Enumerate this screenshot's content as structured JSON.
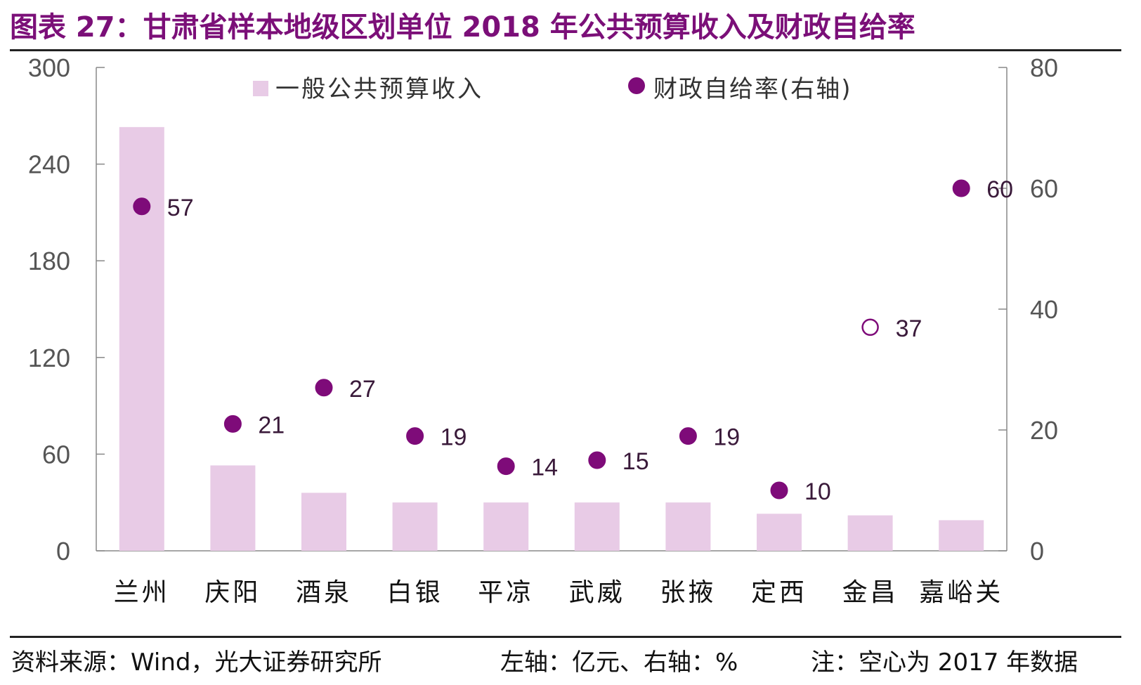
{
  "title": "图表 27：甘肃省样本地级区划单位 2018 年公共预算收入及财政自给率",
  "footer": {
    "source": "资料来源：Wind，光大证券研究所",
    "units": "左轴：亿元、右轴：%",
    "note": "注：空心为 2017 年数据"
  },
  "colors": {
    "bar": "#e8cbe6",
    "dot": "#7e0b79",
    "axis": "#888888",
    "tick_text": "#555555",
    "title": "#7b0f78"
  },
  "chart_data": {
    "type": "bar",
    "categories": [
      "兰州",
      "庆阳",
      "酒泉",
      "白银",
      "平凉",
      "武威",
      "张掖",
      "定西",
      "金昌",
      "嘉峪关"
    ],
    "series": [
      {
        "name": "一般公共预算收入",
        "axis": "left",
        "mark": "bar",
        "values": [
          263,
          53,
          36,
          30,
          30,
          30,
          30,
          23,
          22,
          19
        ]
      },
      {
        "name": "财政自给率(右轴)",
        "axis": "right",
        "mark": "dot",
        "values": [
          57,
          21,
          27,
          19,
          14,
          15,
          19,
          10,
          37,
          60
        ],
        "data_labels": [
          "57",
          "21",
          "27",
          "19",
          "14",
          "15",
          "19",
          "10",
          "37",
          "60"
        ],
        "hollow": [
          false,
          false,
          false,
          false,
          false,
          false,
          false,
          false,
          true,
          false
        ]
      }
    ],
    "y_left": {
      "lim": [
        0,
        300
      ],
      "ticks": [
        0,
        60,
        120,
        180,
        240,
        300
      ]
    },
    "y_right": {
      "lim": [
        0,
        80
      ],
      "ticks": [
        0,
        20,
        40,
        60,
        80
      ]
    },
    "legend": {
      "placement": "top"
    },
    "grid": false
  }
}
